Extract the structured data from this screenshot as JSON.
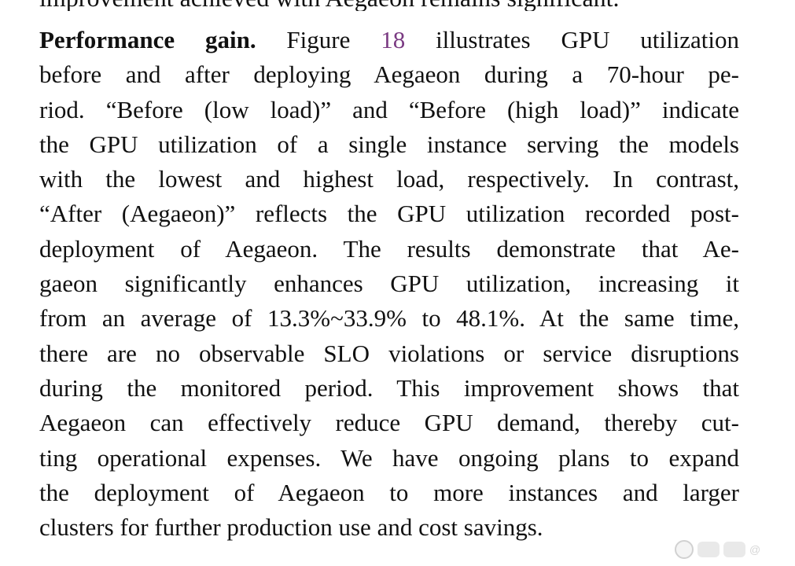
{
  "previous_line_fragment": "improvement achieved with Aegaeon remains significant.",
  "paragraph": {
    "run_in_heading": "Performance gain.",
    "lines": [
      {
        "pre": " Figure ",
        "figure_ref": "18",
        "post": " illustrates GPU utilization"
      },
      {
        "text": "before and after deploying Aegaeon during a 70-hour pe-"
      },
      {
        "text": "riod. “Before (low load)” and “Before (high load)” indicate"
      },
      {
        "text": "the GPU utilization of a single instance serving the models"
      },
      {
        "text": "with the lowest and highest load, respectively. In contrast,"
      },
      {
        "text": "“After (Aegaeon)” reflects the GPU utilization recorded post-"
      },
      {
        "text": "deployment of Aegaeon. The results demonstrate that Ae-"
      },
      {
        "text": "gaeon significantly enhances GPU utilization, increasing it"
      },
      {
        "text": "from an average of 13.3%~33.9% to 48.1%. At the same time,"
      },
      {
        "text": "there are no observable SLO violations or service disruptions"
      },
      {
        "text": "during the monitored period. This improvement shows that"
      },
      {
        "text": "Aegaeon can effectively reduce GPU demand, thereby cut-"
      },
      {
        "text": "ting operational expenses. We have ongoing plans to expand"
      },
      {
        "text": "the deployment of Aegaeon to more instances and larger"
      },
      {
        "text": "clusters for further production use and cost savings."
      }
    ]
  },
  "colors": {
    "text": "#111111",
    "figure_ref": "#7a3a82",
    "background": "#ffffff"
  },
  "watermark": {
    "icon": "platform-logo-icon",
    "text": "@"
  }
}
